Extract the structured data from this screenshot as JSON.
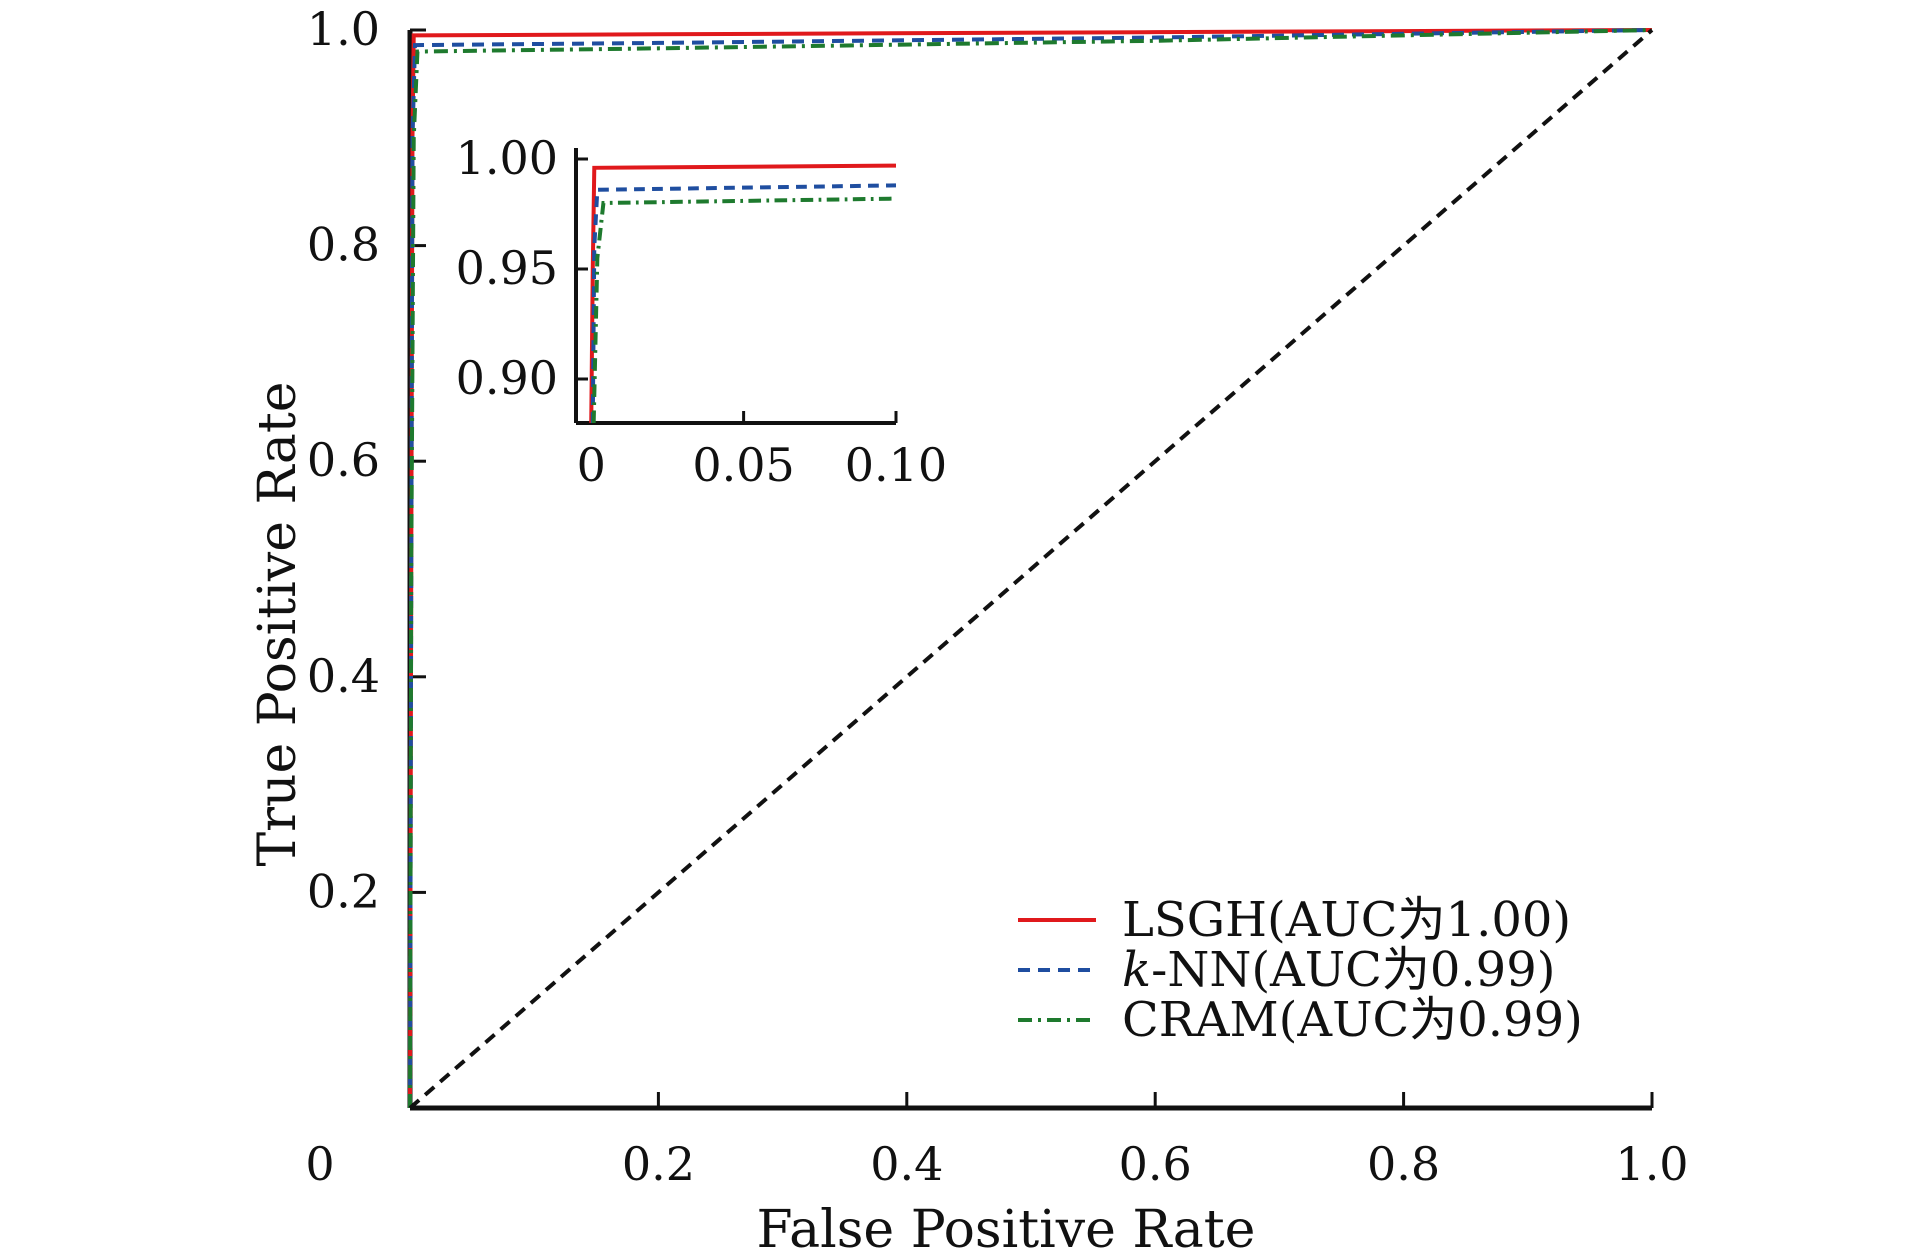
{
  "chart_data": [
    {
      "type": "line",
      "title": "",
      "xlabel": "False Positive Rate",
      "ylabel": "True Positive Rate",
      "xlim": [
        0,
        1.0
      ],
      "ylim": [
        0,
        1.0
      ],
      "x_ticks": [
        {
          "value": 0,
          "label": "0"
        },
        {
          "value": 0.2,
          "label": "0.2"
        },
        {
          "value": 0.4,
          "label": "0.4"
        },
        {
          "value": 0.6,
          "label": "0.6"
        },
        {
          "value": 0.8,
          "label": "0.8"
        },
        {
          "value": 1.0,
          "label": "1.0"
        }
      ],
      "y_ticks": [
        {
          "value": 0.2,
          "label": "0.2"
        },
        {
          "value": 0.4,
          "label": "0.4"
        },
        {
          "value": 0.6,
          "label": "0.6"
        },
        {
          "value": 0.8,
          "label": "0.8"
        },
        {
          "value": 1.0,
          "label": "1.0"
        }
      ],
      "grid": false,
      "legend_position": "bottom-right",
      "series": [
        {
          "name": "LSGH(AUC为1.00)",
          "color": "#e0191c",
          "dash": "solid",
          "x": [
            0,
            0.001,
            0.002,
            0.003,
            0.2,
            0.6,
            1.0
          ],
          "y": [
            0,
            0.5,
            0.9,
            0.995,
            0.996,
            0.998,
            1.0
          ]
        },
        {
          "name": "k-NN(AUC为0.99)",
          "name_italic": "k",
          "name_rest": "-NN(AUC为0.99)",
          "color": "#1f4ea0",
          "dash": "dashed",
          "x": [
            0,
            0.001,
            0.002,
            0.004,
            0.2,
            0.6,
            1.0
          ],
          "y": [
            0,
            0.5,
            0.9,
            0.986,
            0.988,
            0.993,
            1.0
          ]
        },
        {
          "name": "CRAM(AUC为0.99)",
          "color": "#1e7a2e",
          "dash": "dashdot",
          "x": [
            0,
            0.001,
            0.003,
            0.006,
            0.2,
            0.6,
            1.0
          ],
          "y": [
            0,
            0.5,
            0.9,
            0.98,
            0.983,
            0.99,
            1.0
          ]
        },
        {
          "name": "",
          "color": "#111111",
          "dash": "dashed",
          "x": [
            0,
            1.0
          ],
          "y": [
            0,
            1.0
          ]
        }
      ]
    },
    {
      "type": "line",
      "title": "",
      "xlabel": "",
      "ylabel": "",
      "xlim": [
        -0.005,
        0.1
      ],
      "ylim": [
        0.88,
        1.005
      ],
      "x_ticks": [
        {
          "value": 0,
          "label": "0"
        },
        {
          "value": 0.05,
          "label": "0.05"
        },
        {
          "value": 0.1,
          "label": "0.10"
        }
      ],
      "y_ticks": [
        {
          "value": 0.9,
          "label": "0.90"
        },
        {
          "value": 0.95,
          "label": "0.95"
        },
        {
          "value": 1.0,
          "label": "1.00"
        }
      ],
      "grid": false,
      "series": [
        {
          "name": "LSGH(AUC为1.00)",
          "color": "#e0191c",
          "dash": "solid",
          "x": [
            0,
            0.0005,
            0.001,
            0.1
          ],
          "y": [
            0.88,
            0.95,
            0.996,
            0.997
          ]
        },
        {
          "name": "k-NN(AUC为0.99)",
          "color": "#1f4ea0",
          "dash": "dashed",
          "x": [
            0.0005,
            0.001,
            0.002,
            0.1
          ],
          "y": [
            0.88,
            0.96,
            0.986,
            0.988
          ]
        },
        {
          "name": "CRAM(AUC为0.99)",
          "color": "#1e7a2e",
          "dash": "dashdot",
          "x": [
            0.0008,
            0.002,
            0.004,
            0.1
          ],
          "y": [
            0.88,
            0.955,
            0.98,
            0.982
          ]
        }
      ]
    }
  ]
}
